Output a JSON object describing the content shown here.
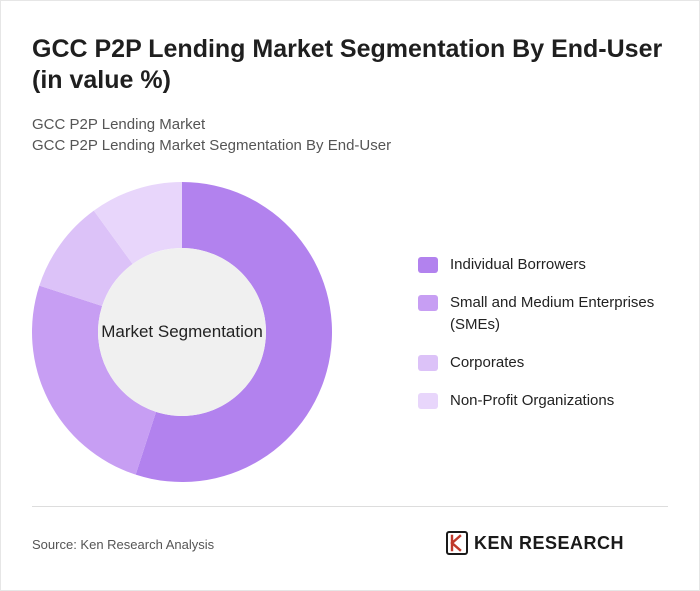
{
  "header": {
    "title": "GCC P2P Lending Market Segmentation By End-User (in value %)",
    "subtitle_lines": [
      "GCC P2P Lending Market",
      "GCC P2P Lending Market Segmentation By End-User"
    ]
  },
  "chart_data": {
    "type": "pie",
    "variant": "donut",
    "center_label": "Market Segmentation",
    "categories": [
      "Individual Borrowers",
      "Small and Medium Enterprises (SMEs)",
      "Corporates",
      "Non-Profit Organizations"
    ],
    "values": [
      55,
      25,
      10,
      10
    ],
    "colors": [
      "#b282ee",
      "#c79ef3",
      "#dcc2f8",
      "#e8d6fb"
    ],
    "legend_position": "right"
  },
  "footer": {
    "source": "Source: Ken Research Analysis",
    "logo_text": "KEN RESEARCH"
  }
}
